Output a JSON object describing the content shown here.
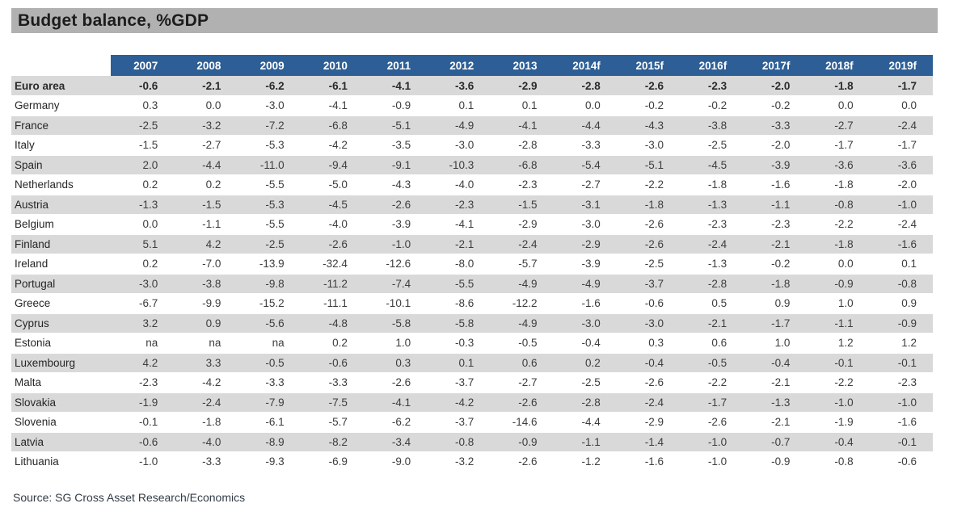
{
  "title": "Budget balance, %GDP",
  "source": "Source: SG Cross Asset Research/Economics",
  "colors": {
    "header_bg": "#2d5f96",
    "header_text": "#ffffff",
    "title_bar_bg": "#b1b1b1",
    "stripe_bg": "#d9d9d9",
    "row_bg": "#ffffff",
    "text": "#3d3d3d"
  },
  "table": {
    "columns": [
      "2007",
      "2008",
      "2009",
      "2010",
      "2011",
      "2012",
      "2013",
      "2014f",
      "2015f",
      "2016f",
      "2017f",
      "2018f",
      "2019f"
    ],
    "rows": [
      {
        "label": "Euro area",
        "bold": true,
        "values": [
          "-0.6",
          "-2.1",
          "-6.2",
          "-6.1",
          "-4.1",
          "-3.6",
          "-2.9",
          "-2.8",
          "-2.6",
          "-2.3",
          "-2.0",
          "-1.8",
          "-1.7"
        ]
      },
      {
        "label": "Germany",
        "bold": false,
        "values": [
          "0.3",
          "0.0",
          "-3.0",
          "-4.1",
          "-0.9",
          "0.1",
          "0.1",
          "0.0",
          "-0.2",
          "-0.2",
          "-0.2",
          "0.0",
          "0.0"
        ]
      },
      {
        "label": "France",
        "bold": false,
        "values": [
          "-2.5",
          "-3.2",
          "-7.2",
          "-6.8",
          "-5.1",
          "-4.9",
          "-4.1",
          "-4.4",
          "-4.3",
          "-3.8",
          "-3.3",
          "-2.7",
          "-2.4"
        ]
      },
      {
        "label": "Italy",
        "bold": false,
        "values": [
          "-1.5",
          "-2.7",
          "-5.3",
          "-4.2",
          "-3.5",
          "-3.0",
          "-2.8",
          "-3.3",
          "-3.0",
          "-2.5",
          "-2.0",
          "-1.7",
          "-1.7"
        ]
      },
      {
        "label": "Spain",
        "bold": false,
        "values": [
          "2.0",
          "-4.4",
          "-11.0",
          "-9.4",
          "-9.1",
          "-10.3",
          "-6.8",
          "-5.4",
          "-5.1",
          "-4.5",
          "-3.9",
          "-3.6",
          "-3.6"
        ]
      },
      {
        "label": "Netherlands",
        "bold": false,
        "values": [
          "0.2",
          "0.2",
          "-5.5",
          "-5.0",
          "-4.3",
          "-4.0",
          "-2.3",
          "-2.7",
          "-2.2",
          "-1.8",
          "-1.6",
          "-1.8",
          "-2.0"
        ]
      },
      {
        "label": "Austria",
        "bold": false,
        "values": [
          "-1.3",
          "-1.5",
          "-5.3",
          "-4.5",
          "-2.6",
          "-2.3",
          "-1.5",
          "-3.1",
          "-1.8",
          "-1.3",
          "-1.1",
          "-0.8",
          "-1.0"
        ]
      },
      {
        "label": "Belgium",
        "bold": false,
        "values": [
          "0.0",
          "-1.1",
          "-5.5",
          "-4.0",
          "-3.9",
          "-4.1",
          "-2.9",
          "-3.0",
          "-2.6",
          "-2.3",
          "-2.3",
          "-2.2",
          "-2.4"
        ]
      },
      {
        "label": "Finland",
        "bold": false,
        "values": [
          "5.1",
          "4.2",
          "-2.5",
          "-2.6",
          "-1.0",
          "-2.1",
          "-2.4",
          "-2.9",
          "-2.6",
          "-2.4",
          "-2.1",
          "-1.8",
          "-1.6"
        ]
      },
      {
        "label": "Ireland",
        "bold": false,
        "values": [
          "0.2",
          "-7.0",
          "-13.9",
          "-32.4",
          "-12.6",
          "-8.0",
          "-5.7",
          "-3.9",
          "-2.5",
          "-1.3",
          "-0.2",
          "0.0",
          "0.1"
        ]
      },
      {
        "label": "Portugal",
        "bold": false,
        "values": [
          "-3.0",
          "-3.8",
          "-9.8",
          "-11.2",
          "-7.4",
          "-5.5",
          "-4.9",
          "-4.9",
          "-3.7",
          "-2.8",
          "-1.8",
          "-0.9",
          "-0.8"
        ]
      },
      {
        "label": "Greece",
        "bold": false,
        "values": [
          "-6.7",
          "-9.9",
          "-15.2",
          "-11.1",
          "-10.1",
          "-8.6",
          "-12.2",
          "-1.6",
          "-0.6",
          "0.5",
          "0.9",
          "1.0",
          "0.9"
        ]
      },
      {
        "label": "Cyprus",
        "bold": false,
        "values": [
          "3.2",
          "0.9",
          "-5.6",
          "-4.8",
          "-5.8",
          "-5.8",
          "-4.9",
          "-3.0",
          "-3.0",
          "-2.1",
          "-1.7",
          "-1.1",
          "-0.9"
        ]
      },
      {
        "label": "Estonia",
        "bold": false,
        "values": [
          "na",
          "na",
          "na",
          "0.2",
          "1.0",
          "-0.3",
          "-0.5",
          "-0.4",
          "0.3",
          "0.6",
          "1.0",
          "1.2",
          "1.2"
        ]
      },
      {
        "label": "Luxembourg",
        "bold": false,
        "values": [
          "4.2",
          "3.3",
          "-0.5",
          "-0.6",
          "0.3",
          "0.1",
          "0.6",
          "0.2",
          "-0.4",
          "-0.5",
          "-0.4",
          "-0.1",
          "-0.1"
        ]
      },
      {
        "label": "Malta",
        "bold": false,
        "values": [
          "-2.3",
          "-4.2",
          "-3.3",
          "-3.3",
          "-2.6",
          "-3.7",
          "-2.7",
          "-2.5",
          "-2.6",
          "-2.2",
          "-2.1",
          "-2.2",
          "-2.3"
        ]
      },
      {
        "label": "Slovakia",
        "bold": false,
        "values": [
          "-1.9",
          "-2.4",
          "-7.9",
          "-7.5",
          "-4.1",
          "-4.2",
          "-2.6",
          "-2.8",
          "-2.4",
          "-1.7",
          "-1.3",
          "-1.0",
          "-1.0"
        ]
      },
      {
        "label": "Slovenia",
        "bold": false,
        "values": [
          "-0.1",
          "-1.8",
          "-6.1",
          "-5.7",
          "-6.2",
          "-3.7",
          "-14.6",
          "-4.4",
          "-2.9",
          "-2.6",
          "-2.1",
          "-1.9",
          "-1.6"
        ]
      },
      {
        "label": "Latvia",
        "bold": false,
        "values": [
          "-0.6",
          "-4.0",
          "-8.9",
          "-8.2",
          "-3.4",
          "-0.8",
          "-0.9",
          "-1.1",
          "-1.4",
          "-1.0",
          "-0.7",
          "-0.4",
          "-0.1"
        ]
      },
      {
        "label": "Lithuania",
        "bold": false,
        "values": [
          "-1.0",
          "-3.3",
          "-9.3",
          "-6.9",
          "-9.0",
          "-3.2",
          "-2.6",
          "-1.2",
          "-1.6",
          "-1.0",
          "-0.9",
          "-0.8",
          "-0.6"
        ]
      }
    ]
  }
}
